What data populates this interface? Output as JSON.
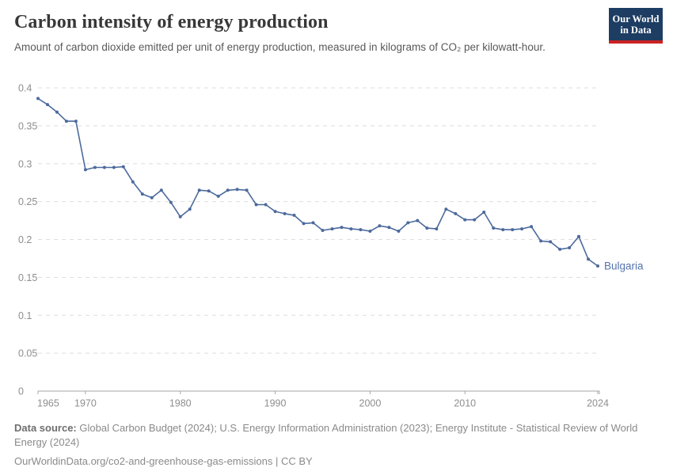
{
  "header": {
    "title": "Carbon intensity of energy production",
    "subtitle": "Amount of carbon dioxide emitted per unit of energy production, measured in kilograms of CO₂ per kilowatt-hour.",
    "logo": {
      "line1": "Our World",
      "line2": "in Data",
      "bg_color": "#1d3d63",
      "bar_color": "#cc2222"
    }
  },
  "chart_data": {
    "type": "line",
    "title": "Carbon intensity of energy production",
    "unit": "kilograms of CO₂ per kilowatt-hour",
    "xlim": [
      1965,
      2024
    ],
    "ylim": [
      0,
      0.4
    ],
    "x_ticks": [
      1965,
      1970,
      1980,
      1990,
      2000,
      2010,
      2024
    ],
    "y_ticks": [
      0,
      0.05,
      0.1,
      0.15,
      0.2,
      0.25,
      0.3,
      0.35,
      0.4
    ],
    "grid": "horizontal-dashed",
    "legend_position": "end-of-line-label",
    "line_color": "#4c6a9c",
    "label_color": "#5474ae",
    "axis_text_color": "#8e8e8e",
    "series": [
      {
        "name": "Bulgaria",
        "x": [
          1965,
          1966,
          1967,
          1968,
          1969,
          1970,
          1971,
          1972,
          1973,
          1974,
          1975,
          1976,
          1977,
          1978,
          1979,
          1980,
          1981,
          1982,
          1983,
          1984,
          1985,
          1986,
          1987,
          1988,
          1989,
          1990,
          1991,
          1992,
          1993,
          1994,
          1995,
          1996,
          1997,
          1998,
          1999,
          2000,
          2001,
          2002,
          2003,
          2004,
          2005,
          2006,
          2007,
          2008,
          2009,
          2010,
          2011,
          2012,
          2013,
          2014,
          2015,
          2016,
          2017,
          2018,
          2019,
          2020,
          2021,
          2022,
          2023,
          2024
        ],
        "values": [
          0.386,
          0.378,
          0.368,
          0.356,
          0.356,
          0.292,
          0.295,
          0.295,
          0.295,
          0.296,
          0.276,
          0.26,
          0.255,
          0.265,
          0.249,
          0.23,
          0.24,
          0.265,
          0.264,
          0.257,
          0.265,
          0.266,
          0.265,
          0.246,
          0.246,
          0.237,
          0.234,
          0.232,
          0.221,
          0.222,
          0.212,
          0.214,
          0.216,
          0.214,
          0.213,
          0.211,
          0.218,
          0.216,
          0.211,
          0.222,
          0.225,
          0.215,
          0.214,
          0.24,
          0.234,
          0.226,
          0.226,
          0.236,
          0.215,
          0.213,
          0.213,
          0.214,
          0.217,
          0.198,
          0.197,
          0.187,
          0.189,
          0.204,
          0.174,
          0.165
        ]
      }
    ]
  },
  "footer": {
    "source_label": "Data source:",
    "sources": "Global Carbon Budget (2024); U.S. Energy Information Administration (2023); Energy Institute - Statistical Review of World Energy (2024)",
    "note": "OurWorldinData.org/co2-and-greenhouse-gas-emissions | CC BY"
  }
}
